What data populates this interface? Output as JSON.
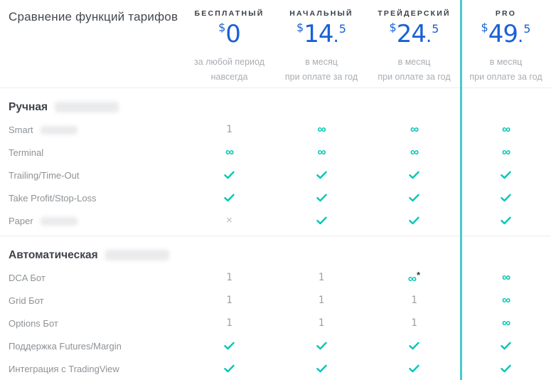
{
  "page": {
    "title": "Сравнение функций тарифов"
  },
  "colors": {
    "accent_teal": "#00c7b4",
    "highlight_line": "#45cacc",
    "price_blue": "#1961d6"
  },
  "icons": {
    "infinity": "∞",
    "check": "✓",
    "cross": "×",
    "asterisk": "*"
  },
  "plans": [
    {
      "name": "БЕСПЛАТНЫЙ",
      "currency": "$",
      "price": "0",
      "dot": "",
      "cents": "",
      "period1": "за любой период",
      "period2": "навсегда",
      "highlighted": false
    },
    {
      "name": "НАЧАЛЬНЫЙ",
      "currency": "$",
      "price": "14",
      "dot": ".",
      "cents": "5",
      "period1": "в месяц",
      "period2": "при оплате за год",
      "highlighted": false
    },
    {
      "name": "ТРЕЙДЕРСКИЙ",
      "currency": "$",
      "price": "24",
      "dot": ".",
      "cents": "5",
      "period1": "в месяц",
      "period2": "при оплате за год",
      "highlighted": false
    },
    {
      "name": "PRO",
      "currency": "$",
      "price": "49",
      "dot": ".",
      "cents": "5",
      "period1": "в месяц",
      "period2": "при оплате за год",
      "highlighted": true
    }
  ],
  "sections": [
    {
      "title": "Ручная",
      "title_redacted": true,
      "rows": [
        {
          "label": "Smart",
          "label_redacted": true,
          "values": [
            "one",
            "infinity",
            "infinity",
            "infinity"
          ]
        },
        {
          "label": "Terminal",
          "label_redacted": false,
          "values": [
            "infinity",
            "infinity",
            "infinity",
            "infinity"
          ]
        },
        {
          "label": "Trailing/Time-Out",
          "label_redacted": false,
          "values": [
            "check",
            "check",
            "check",
            "check"
          ]
        },
        {
          "label": "Take Profit/Stop-Loss",
          "label_redacted": false,
          "values": [
            "check",
            "check",
            "check",
            "check"
          ]
        },
        {
          "label": "Paper",
          "label_redacted": true,
          "values": [
            "cross",
            "check",
            "check",
            "check"
          ]
        }
      ]
    },
    {
      "title": "Автоматическая",
      "title_redacted": true,
      "rows": [
        {
          "label": "DCA Бот",
          "label_redacted": false,
          "values": [
            "one",
            "one",
            "infinity-asterisk",
            "infinity"
          ]
        },
        {
          "label": "Grid Бот",
          "label_redacted": false,
          "values": [
            "one",
            "one",
            "one",
            "infinity"
          ]
        },
        {
          "label": "Options Бот",
          "label_redacted": false,
          "values": [
            "one",
            "one",
            "one",
            "infinity"
          ]
        },
        {
          "label": "Поддержка Futures/Margin",
          "label_redacted": false,
          "values": [
            "check",
            "check",
            "check",
            "check"
          ]
        },
        {
          "label": "Интеграция с TradingView",
          "label_redacted": false,
          "values": [
            "check",
            "check",
            "check",
            "check"
          ]
        }
      ]
    }
  ]
}
